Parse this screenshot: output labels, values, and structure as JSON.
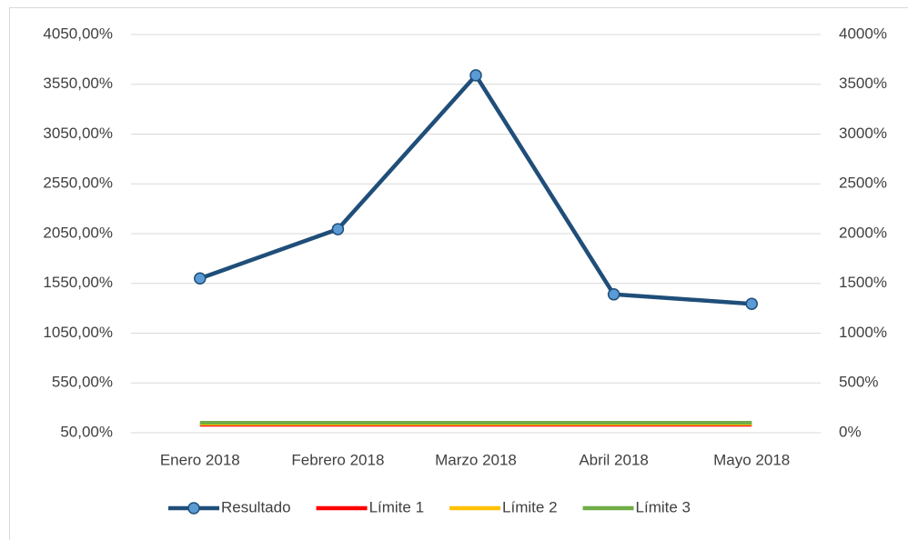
{
  "chart_data": {
    "type": "line",
    "categories": [
      "Enero 2018",
      "Febrero 2018",
      "Marzo 2018",
      "Abril 2018",
      "Mayo 2018"
    ],
    "series": [
      {
        "name": "Resultado",
        "color": "#1f4e79",
        "marker_color": "#5b9bd5",
        "values": [
          1600,
          2095,
          3640,
          1440,
          1345
        ]
      },
      {
        "name": "Límite 1",
        "color": "#ff0000",
        "axis": "y2",
        "values": [
          80,
          80,
          80,
          80,
          80
        ]
      },
      {
        "name": "Límite 2",
        "color": "#ffc000",
        "axis": "y2",
        "values": [
          90,
          90,
          90,
          90,
          90
        ]
      },
      {
        "name": "Límite 3",
        "color": "#70ad47",
        "axis": "y2",
        "values": [
          100,
          100,
          100,
          100,
          100
        ]
      }
    ],
    "ylim": [
      50,
      4050
    ],
    "yticks": [
      {
        "value": 50,
        "label": "50,00%"
      },
      {
        "value": 550,
        "label": "550,00%"
      },
      {
        "value": 1050,
        "label": "1050,00%"
      },
      {
        "value": 1550,
        "label": "1550,00%"
      },
      {
        "value": 2050,
        "label": "2050,00%"
      },
      {
        "value": 2550,
        "label": "2550,00%"
      },
      {
        "value": 3050,
        "label": "3050,00%"
      },
      {
        "value": 3550,
        "label": "3550,00%"
      },
      {
        "value": 4050,
        "label": "4050,00%"
      }
    ],
    "y2lim": [
      0,
      4000
    ],
    "y2ticks": [
      {
        "value": 0,
        "label": "0%"
      },
      {
        "value": 500,
        "label": "500%"
      },
      {
        "value": 1000,
        "label": "1000%"
      },
      {
        "value": 1500,
        "label": "1500%"
      },
      {
        "value": 2000,
        "label": "2000%"
      },
      {
        "value": 2500,
        "label": "2500%"
      },
      {
        "value": 3000,
        "label": "3000%"
      },
      {
        "value": 3500,
        "label": "3500%"
      },
      {
        "value": 4000,
        "label": "4000%"
      }
    ],
    "grid": true,
    "legend": "bottom"
  }
}
